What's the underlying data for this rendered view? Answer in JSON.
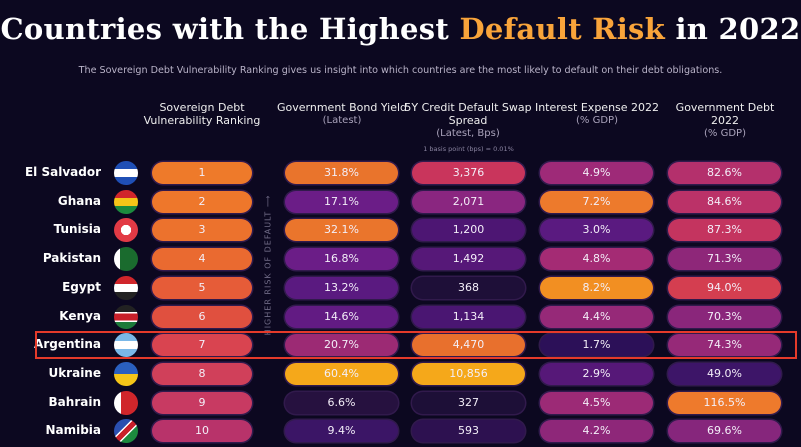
{
  "title": {
    "part1": "Countries with the Highest ",
    "highlight": "Default Risk",
    "part2": " in 2022"
  },
  "subtitle": "The Sovereign Debt Vulnerability Ranking gives us insight into which countries are the most likely to default on their debt obligations.",
  "risk_label": "HIGHER RISK OF DEFAULT ⟶",
  "cds_note": "1 basis point (bps) = 0.01%",
  "colors": {
    "accent": "#f9a43a",
    "highlight_box": "#e53a2a",
    "background": "#0c0820"
  },
  "chart_data": {
    "type": "table",
    "title": "Countries with the Highest Default Risk in 2022",
    "columns": [
      {
        "title": "Sovereign Debt Vulnerability Ranking",
        "sub": ""
      },
      {
        "title": "Government Bond Yield",
        "sub": "(Latest)"
      },
      {
        "title": "5Y Credit Default Swap Spread",
        "sub": "(Latest, Bps)"
      },
      {
        "title": "Interest Expense 2022",
        "sub": "(% GDP)"
      },
      {
        "title": "Government Debt 2022",
        "sub": "(% GDP)"
      }
    ],
    "highlighted_row": "Argentina",
    "rows": [
      {
        "country": "El Salvador",
        "flag": "el-salvador-flag-icon",
        "values": [
          "1",
          "31.8%",
          "3,376",
          "4.9%",
          "82.6%"
        ],
        "colors": [
          "#ee7a2a",
          "#e9742c",
          "#c9355c",
          "#9e2a78",
          "#b4306c"
        ]
      },
      {
        "country": "Ghana",
        "flag": "ghana-flag-icon",
        "values": [
          "2",
          "17.1%",
          "2,071",
          "7.2%",
          "84.6%"
        ],
        "colors": [
          "#ee772b",
          "#6b1d87",
          "#8a2680",
          "#ed7a2c",
          "#bb3268"
        ]
      },
      {
        "country": "Tunisia",
        "flag": "tunisia-flag-icon",
        "values": [
          "3",
          "32.1%",
          "1,200",
          "3.0%",
          "87.3%"
        ],
        "colors": [
          "#ec722d",
          "#ea752c",
          "#4d1673",
          "#5a1a80",
          "#c4345f"
        ]
      },
      {
        "country": "Pakistan",
        "flag": "pakistan-flag-icon",
        "values": [
          "4",
          "16.8%",
          "1,492",
          "4.8%",
          "71.3%"
        ],
        "colors": [
          "#ea6a30",
          "#6b1d87",
          "#561878",
          "#a42b74",
          "#8e2779"
        ]
      },
      {
        "country": "Egypt",
        "flag": "egypt-flag-icon",
        "values": [
          "5",
          "13.2%",
          "368",
          "8.2%",
          "94.0%"
        ],
        "colors": [
          "#e65c38",
          "#5a1a80",
          "#1e0f38",
          "#f28f22",
          "#d43e50"
        ]
      },
      {
        "country": "Kenya",
        "flag": "kenya-flag-icon",
        "values": [
          "6",
          "14.6%",
          "1,134",
          "4.4%",
          "70.3%"
        ],
        "colors": [
          "#e0503f",
          "#621b83",
          "#4a1672",
          "#962978",
          "#8a267b"
        ]
      },
      {
        "country": "Argentina",
        "flag": "argentina-flag-icon",
        "values": [
          "7",
          "20.7%",
          "4,470",
          "1.7%",
          "74.3%"
        ],
        "colors": [
          "#d94450",
          "#9c2a74",
          "#e8702d",
          "#2c1058",
          "#962978"
        ]
      },
      {
        "country": "Ukraine",
        "flag": "ukraine-flag-icon",
        "values": [
          "8",
          "60.4%",
          "10,856",
          "2.9%",
          "49.0%"
        ],
        "colors": [
          "#d0405a",
          "#f5a81a",
          "#f5a81a",
          "#561878",
          "#3d1568"
        ]
      },
      {
        "country": "Bahrain",
        "flag": "bahrain-flag-icon",
        "values": [
          "9",
          "6.6%",
          "327",
          "4.5%",
          "116.5%"
        ],
        "colors": [
          "#c83a62",
          "#26113f",
          "#1d0f37",
          "#9c2a76",
          "#ee7a2c"
        ]
      },
      {
        "country": "Namibia",
        "flag": "namibia-flag-icon",
        "values": [
          "10",
          "9.4%",
          "593",
          "4.2%",
          "69.6%"
        ],
        "colors": [
          "#b8336a",
          "#3b1566",
          "#2d1150",
          "#8e2779",
          "#86267c"
        ]
      }
    ]
  }
}
